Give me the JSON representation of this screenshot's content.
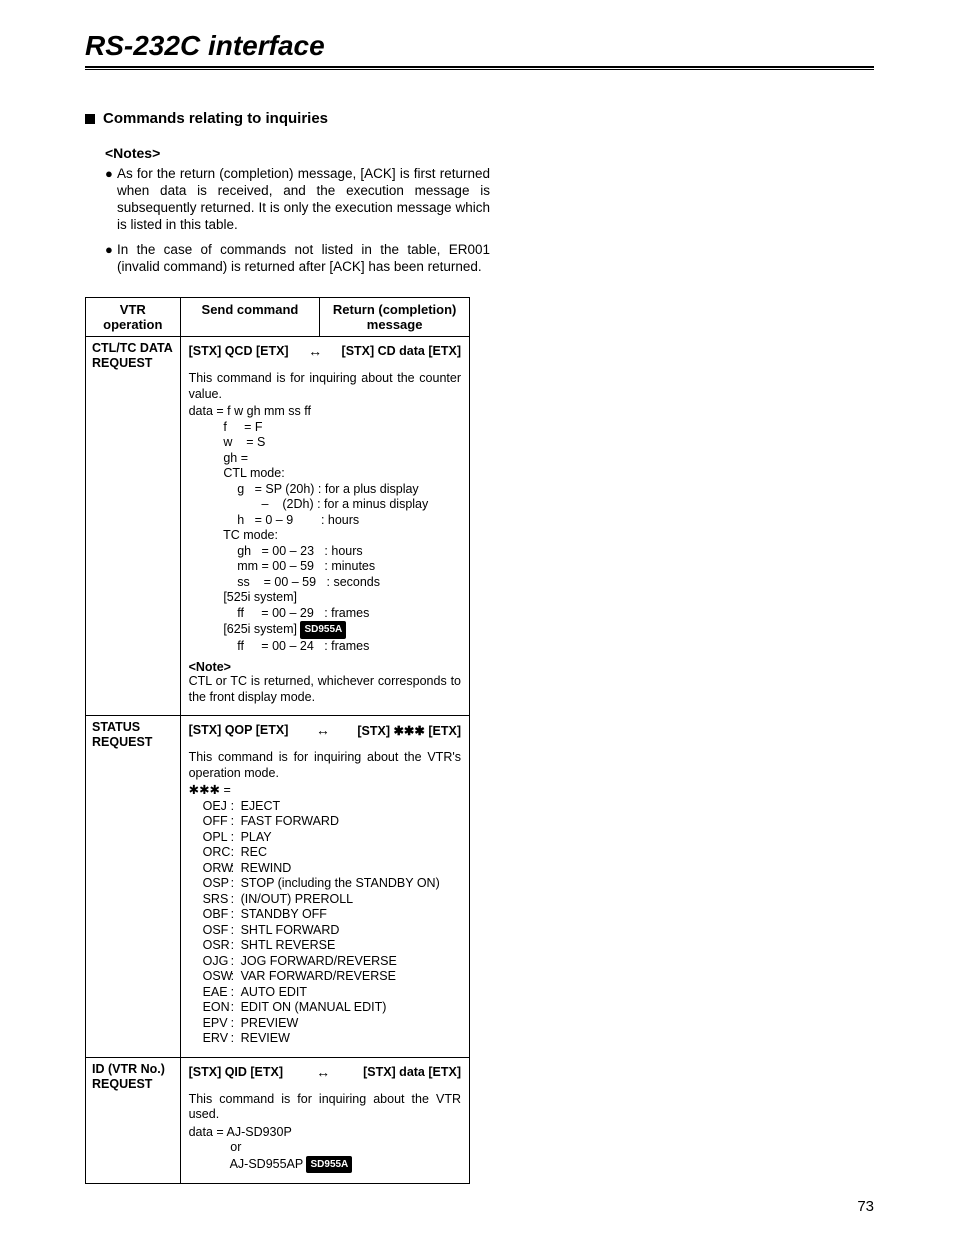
{
  "page": {
    "title": "RS-232C interface",
    "section_heading": "Commands relating to inquiries",
    "notes_heading": "<Notes>",
    "page_number": "73"
  },
  "notes": [
    "As for the return (completion) message, [ACK] is first returned when data is received, and the execution message is subsequently returned. It is only the execution message which is listed in this table.",
    "In the case of commands not listed in the table, ER001 (invalid command) is returned after [ACK] has been returned."
  ],
  "table": {
    "headers": {
      "op": "VTR\noperation",
      "send": "Send command",
      "ret": "Return (completion)\nmessage"
    },
    "rows": [
      {
        "op": "CTL/TC DATA\nREQUEST",
        "send": "[STX] QCD [ETX]",
        "ret": "[STX] CD data [ETX]",
        "desc": "This command is for inquiring about the counter value.",
        "lines": [
          "data = f w gh mm ss ff",
          "          f     = F",
          "          w    = S",
          "          gh =",
          "          CTL mode:",
          "              g   = SP (20h) : for a plus display",
          "                     –    (2Dh) : for a minus display",
          "              h   = 0 – 9        : hours",
          "          TC mode:",
          "              gh   = 00 – 23   : hours",
          "              mm = 00 – 59   : minutes",
          "              ss    = 00 – 59   : seconds",
          "          [525i system]",
          "              ff     = 00 – 29   : frames",
          "          [625i system] {{BADGE:SD955A}}",
          "              ff     = 00 – 24   : frames"
        ],
        "note_label": "<Note>",
        "note_text": "CTL or TC is returned, whichever corresponds to the front display mode."
      },
      {
        "op": "STATUS\nREQUEST",
        "send": "[STX] QOP [ETX]",
        "ret": "[STX] ✱✱✱ [ETX]",
        "desc": "This command is for inquiring about the VTR's operation mode.",
        "prefix": "✱✱✱ =",
        "status_codes": [
          {
            "code": "OEJ",
            "label": "EJECT"
          },
          {
            "code": "OFF",
            "label": "FAST FORWARD"
          },
          {
            "code": "OPL",
            "label": "PLAY"
          },
          {
            "code": "ORC",
            "label": "REC"
          },
          {
            "code": "ORW",
            "label": "REWIND"
          },
          {
            "code": "OSP",
            "label": "STOP (including the STANDBY ON)"
          },
          {
            "code": "SRS",
            "label": "(IN/OUT) PREROLL"
          },
          {
            "code": "OBF",
            "label": "STANDBY OFF"
          },
          {
            "code": "OSF",
            "label": "SHTL FORWARD"
          },
          {
            "code": "OSR",
            "label": "SHTL REVERSE"
          },
          {
            "code": "OJG",
            "label": "JOG FORWARD/REVERSE"
          },
          {
            "code": "OSW",
            "label": "VAR FORWARD/REVERSE"
          },
          {
            "code": "EAE",
            "label": "AUTO EDIT"
          },
          {
            "code": "EON",
            "label": "EDIT ON (MANUAL EDIT)"
          },
          {
            "code": "EPV",
            "label": "PREVIEW"
          },
          {
            "code": "ERV",
            "label": "REVIEW"
          }
        ]
      },
      {
        "op": "ID (VTR No.)\nREQUEST",
        "send": "[STX] QID [ETX]",
        "ret": "[STX] data [ETX]",
        "desc": "This command is for inquiring about the VTR used.",
        "id_lines": {
          "l1": "data = AJ-SD930P",
          "l2": "or",
          "l3": "AJ-SD955AP",
          "badge": "SD955A"
        }
      }
    ]
  }
}
